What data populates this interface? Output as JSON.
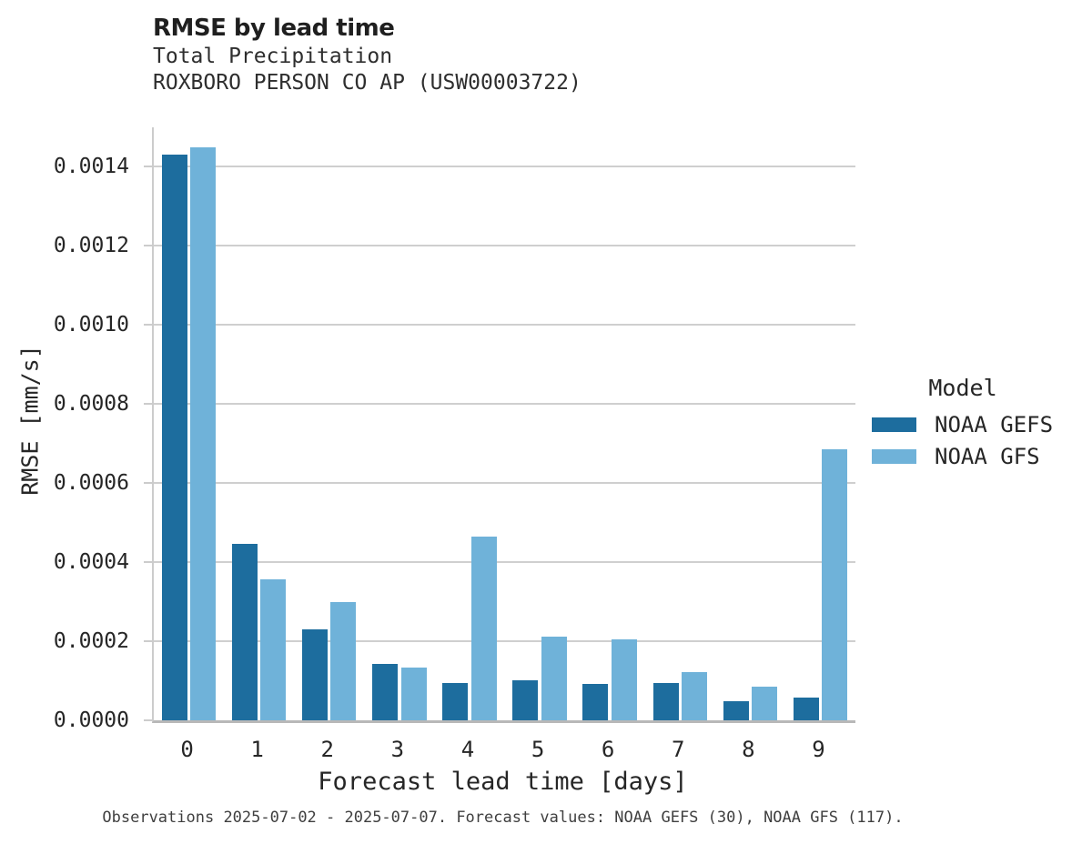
{
  "legend": {
    "title": "Model"
  },
  "footer": {
    "note": "Observations 2025-07-02 - 2025-07-07. Forecast values: NOAA GEFS (30), NOAA GFS (117)."
  },
  "chart_data": {
    "type": "bar",
    "title": "RMSE by lead time",
    "subtitle": [
      "Total Precipitation",
      "ROXBORO PERSON CO AP (USW00003722)"
    ],
    "categories": [
      "0",
      "1",
      "2",
      "3",
      "4",
      "5",
      "6",
      "7",
      "8",
      "9"
    ],
    "series": [
      {
        "name": "NOAA GEFS",
        "color": "#1d6d9e",
        "values": [
          0.00143,
          0.000446,
          0.000229,
          0.000142,
          9.5e-05,
          0.000101,
          9.2e-05,
          9.5e-05,
          4.8e-05,
          5.7e-05
        ]
      },
      {
        "name": "NOAA GFS",
        "color": "#6fb2d9",
        "values": [
          0.00145,
          0.000357,
          0.0003,
          0.000133,
          0.000464,
          0.000211,
          0.000205,
          0.000121,
          8.6e-05,
          0.000686
        ]
      }
    ],
    "xlabel": "Forecast lead time [days]",
    "ylabel": "RMSE [mm/s]",
    "ylim": [
      0,
      0.0015
    ],
    "ytick_step": 0.0002,
    "ytick_decimals": 4,
    "grid": true,
    "legend_position": "center-right",
    "colors": {
      "gridline": "#cfcfcf",
      "baseline": "#b8b8b8",
      "spine": "#cccccc"
    }
  }
}
